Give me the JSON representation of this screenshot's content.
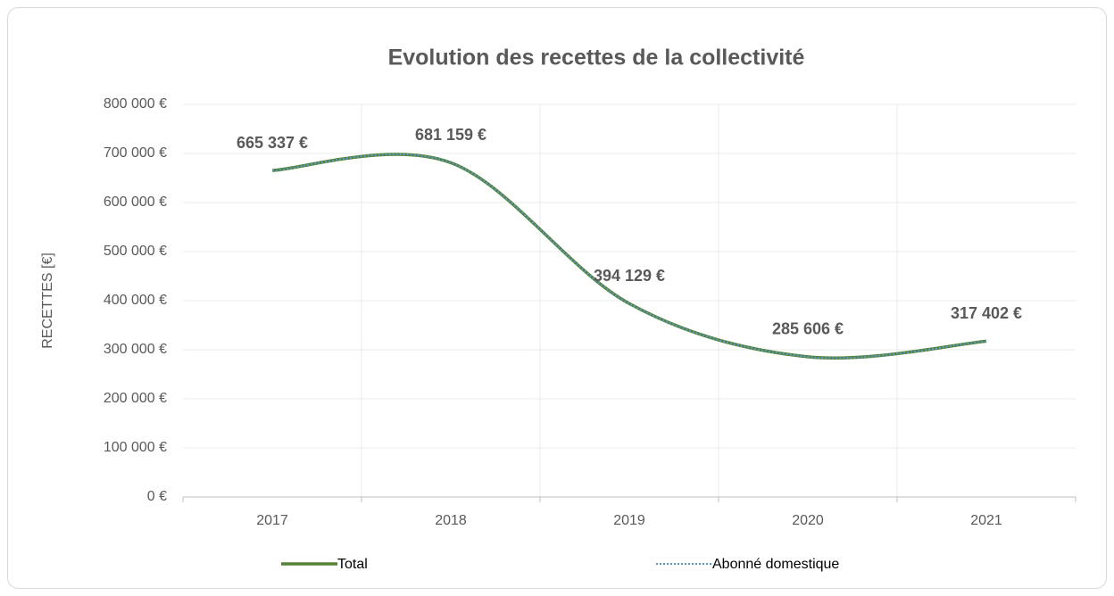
{
  "chart_data": {
    "type": "line",
    "title": "Evolution des recettes de la collectivité",
    "y_label": "RECETTES [€]",
    "categories": [
      "2017",
      "2018",
      "2019",
      "2020",
      "2021"
    ],
    "series": [
      {
        "name": "Total",
        "color": "#548235",
        "style": "solid",
        "values": [
          665337,
          681159,
          394129,
          285606,
          317402
        ],
        "value_labels": [
          "665 337 €",
          "681 159 €",
          "394 129 €",
          "285 606 €",
          "317 402 €"
        ]
      },
      {
        "name": "Abonné domestique",
        "color": "#5b9bd5",
        "style": "dotted",
        "values": [
          665337,
          681159,
          394129,
          285606,
          317402
        ]
      }
    ],
    "ylim": [
      0,
      800000
    ],
    "yticks": [
      {
        "value": 0,
        "label": "0 €"
      },
      {
        "value": 100000,
        "label": "100 000 €"
      },
      {
        "value": 200000,
        "label": "200 000 €"
      },
      {
        "value": 300000,
        "label": "300 000 €"
      },
      {
        "value": 400000,
        "label": "400 000 €"
      },
      {
        "value": 500000,
        "label": "500 000 €"
      },
      {
        "value": 600000,
        "label": "600 000 €"
      },
      {
        "value": 700000,
        "label": "700 000 €"
      },
      {
        "value": 800000,
        "label": "800 000 €"
      }
    ],
    "grid": true,
    "smooth": true,
    "legend": "bottom"
  }
}
